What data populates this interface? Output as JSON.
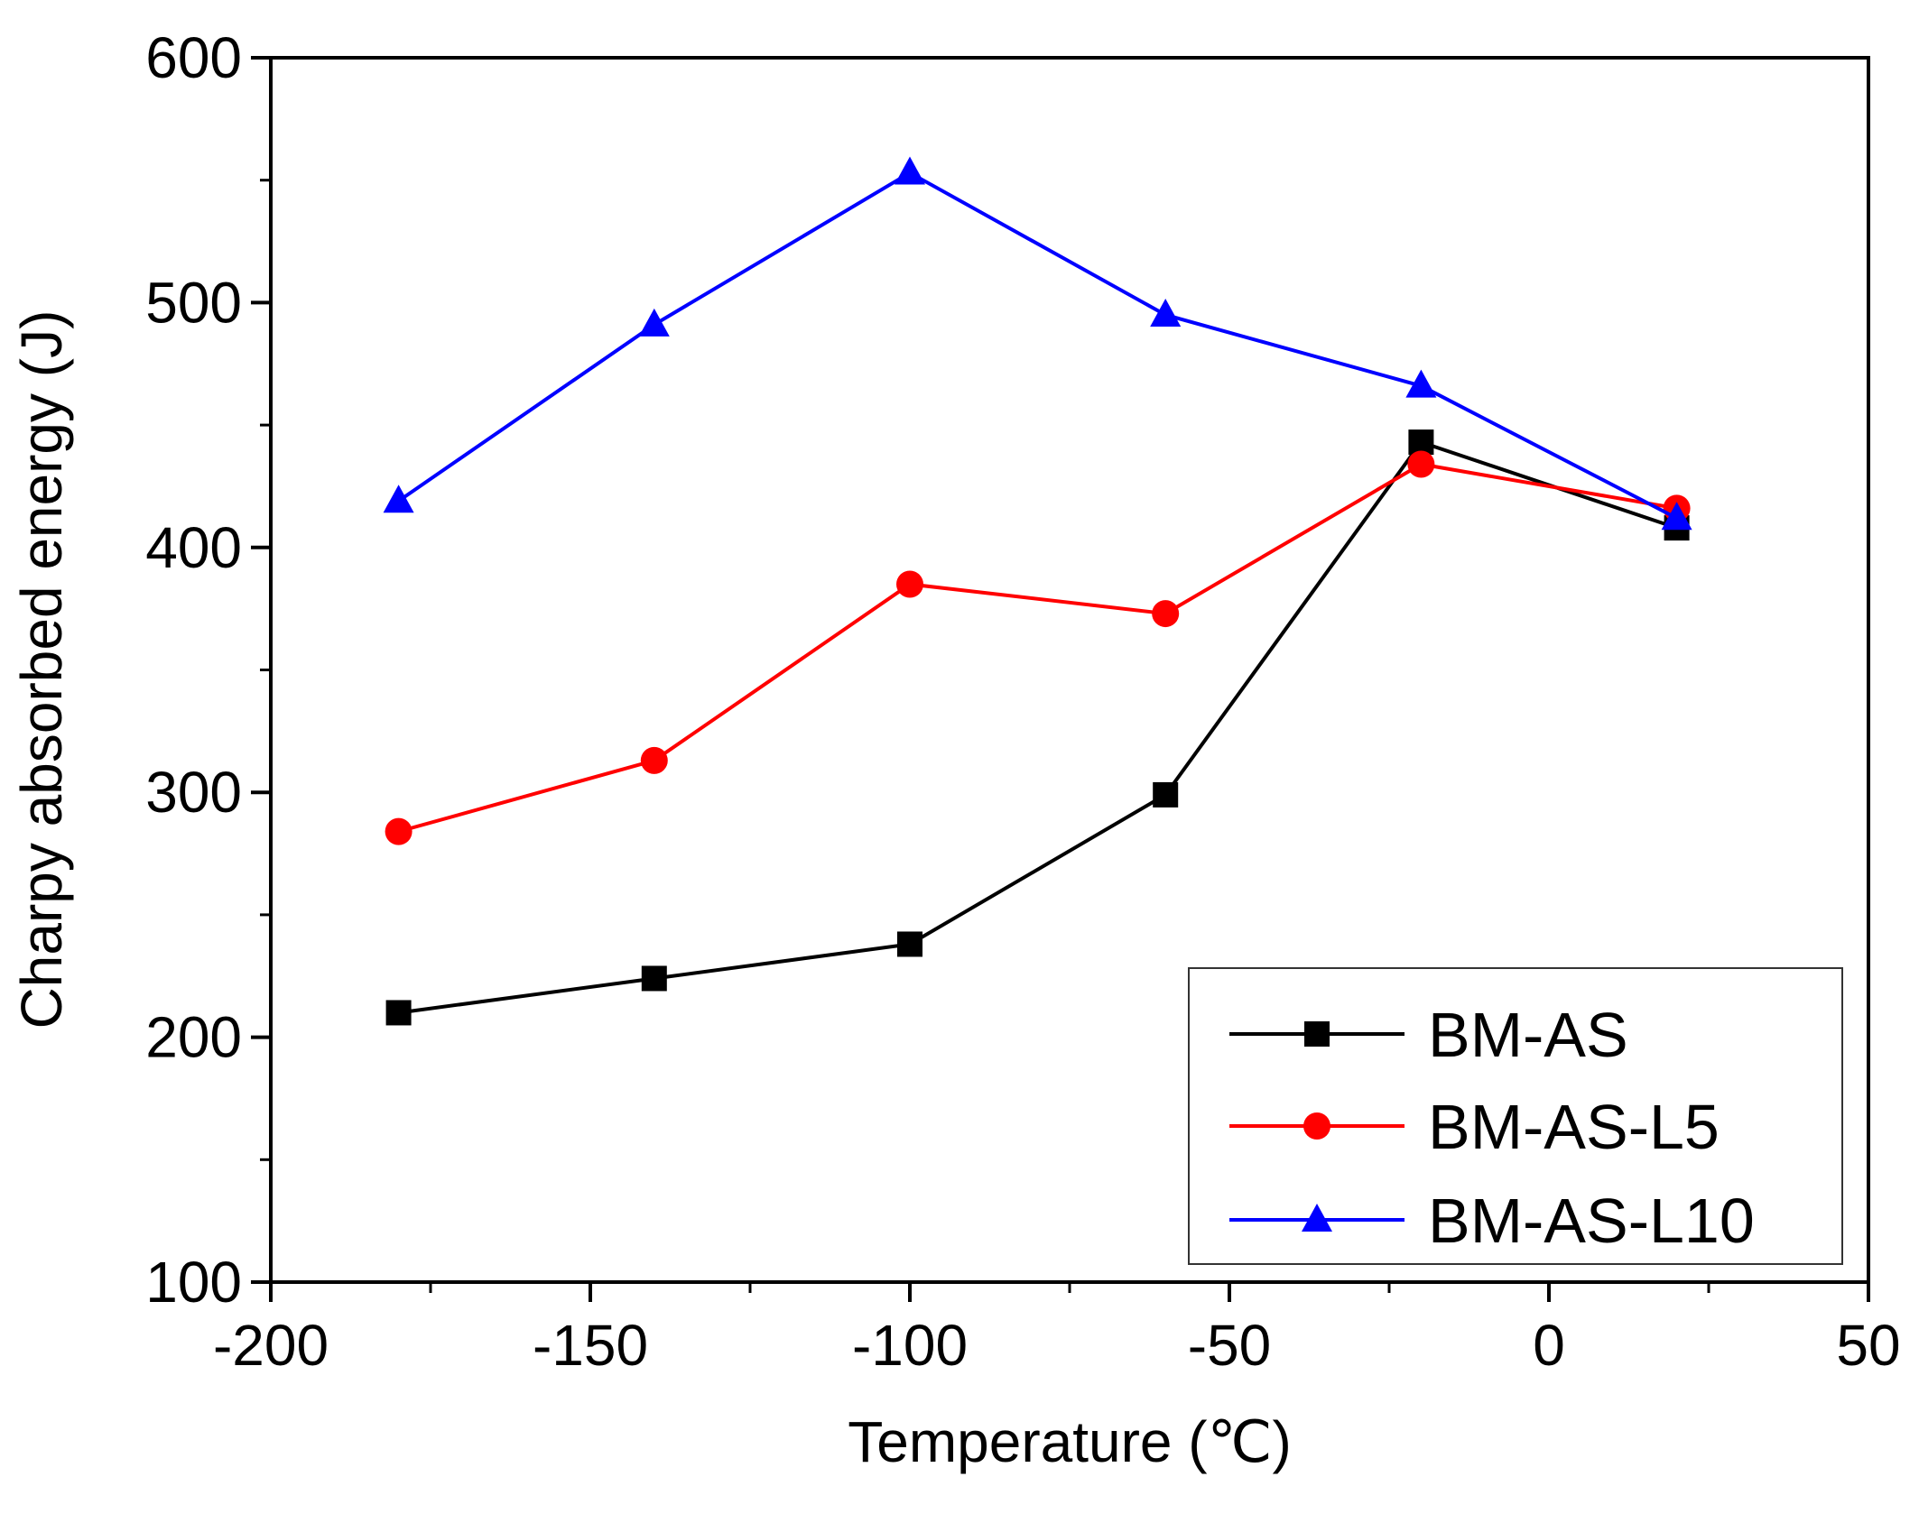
{
  "chart_data": {
    "type": "line",
    "title": "",
    "xlabel": "Temperature (℃)",
    "ylabel": "Charpy absorbed energy (J)",
    "xlim": [
      -200,
      50
    ],
    "ylim": [
      100,
      600
    ],
    "x_major_ticks": [
      -200,
      -150,
      -100,
      -50,
      0,
      50
    ],
    "x_tick_labels": [
      "-200",
      "-150",
      "-100",
      "-50",
      "0",
      "50"
    ],
    "y_major_ticks": [
      100,
      200,
      300,
      400,
      500,
      600
    ],
    "y_tick_labels": [
      "100",
      "200",
      "300",
      "400",
      "500",
      "600"
    ],
    "grid": false,
    "legend_position": "bottom-right",
    "x": [
      -180,
      -140,
      -100,
      -60,
      -20,
      20
    ],
    "series": [
      {
        "name": "BM-AS",
        "color": "#000000",
        "marker": "square",
        "values": [
          210,
          224,
          238,
          299,
          443,
          408
        ]
      },
      {
        "name": "BM-AS-L5",
        "color": "#ff0000",
        "marker": "circle",
        "values": [
          284,
          313,
          385,
          373,
          434,
          416
        ]
      },
      {
        "name": "BM-AS-L10",
        "color": "#0000ff",
        "marker": "triangle",
        "values": [
          419,
          491,
          553,
          495,
          466,
          412
        ]
      }
    ]
  }
}
